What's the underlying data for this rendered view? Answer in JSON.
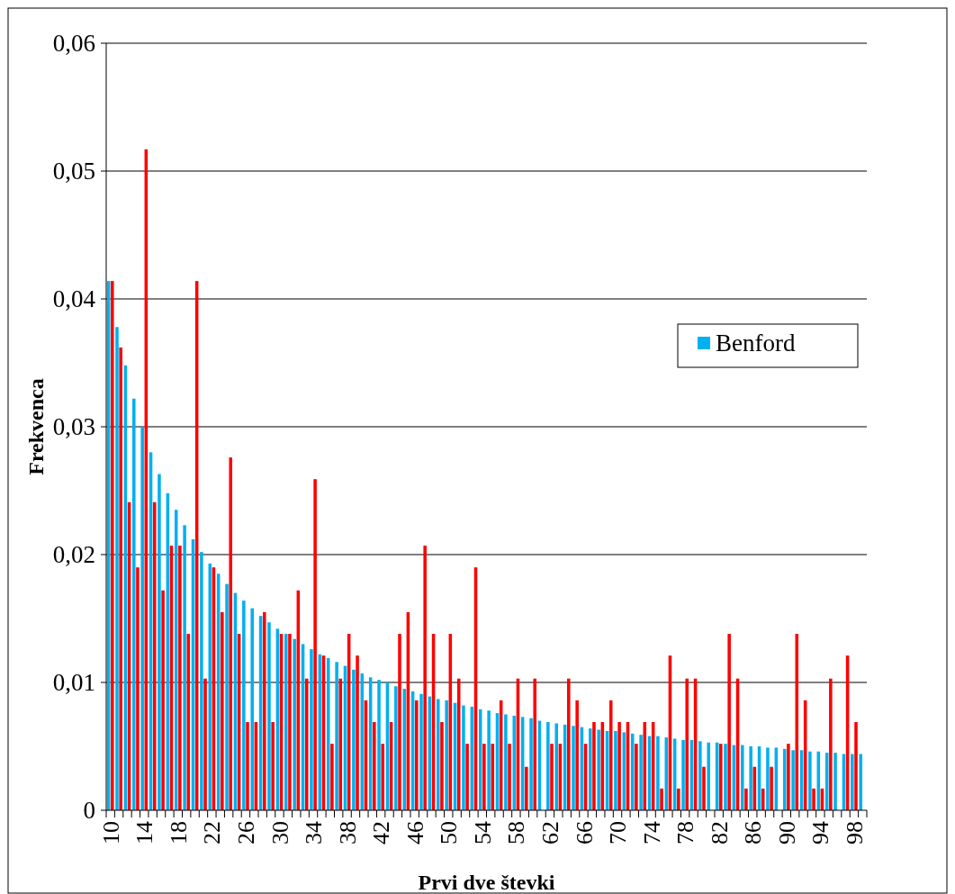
{
  "chart_data": {
    "type": "bar",
    "xlabel": "Prvi dve števki",
    "ylabel": "Frekvenca",
    "categories": [
      "10",
      null,
      null,
      null,
      "14",
      null,
      null,
      null,
      "18",
      null,
      null,
      null,
      "22",
      null,
      null,
      null,
      "26",
      null,
      null,
      null,
      "30",
      null,
      null,
      null,
      "34",
      null,
      null,
      null,
      "38",
      null,
      null,
      null,
      "42",
      null,
      null,
      null,
      "46",
      null,
      null,
      null,
      "50",
      null,
      null,
      null,
      "54",
      null,
      null,
      null,
      "58",
      null,
      null,
      null,
      "62",
      null,
      null,
      null,
      "66",
      null,
      null,
      null,
      "70",
      null,
      null,
      null,
      "74",
      null,
      null,
      null,
      "78",
      null,
      null,
      null,
      "82",
      null,
      null,
      null,
      "86",
      null,
      null,
      null,
      "90",
      null,
      null,
      null,
      "94",
      null,
      null,
      null,
      "98",
      null
    ],
    "series": [
      {
        "name": "Benford",
        "color": "#00b0f0",
        "values": [
          0.0414,
          0.0378,
          0.0348,
          0.0322,
          0.03,
          0.028,
          0.0263,
          0.0248,
          0.0235,
          0.0223,
          0.0212,
          0.0202,
          0.0193,
          0.0185,
          0.0177,
          0.017,
          0.0164,
          0.0158,
          0.0152,
          0.0147,
          0.0142,
          0.0138,
          0.0134,
          0.013,
          0.0126,
          0.0122,
          0.0119,
          0.0116,
          0.0113,
          0.011,
          0.0107,
          0.0104,
          0.0102,
          0.01,
          0.0097,
          0.0095,
          0.0093,
          0.0091,
          0.0089,
          0.0087,
          0.0086,
          0.0084,
          0.0082,
          0.0081,
          0.0079,
          0.0078,
          0.0076,
          0.0075,
          0.0074,
          0.0073,
          0.0072,
          0.007,
          0.0069,
          0.0068,
          0.0067,
          0.0066,
          0.0065,
          0.0064,
          0.0063,
          0.0062,
          0.0062,
          0.0061,
          0.006,
          0.0059,
          0.0058,
          0.0058,
          0.0057,
          0.0056,
          0.0055,
          0.0055,
          0.0054,
          0.0053,
          0.0053,
          0.0052,
          0.0051,
          0.0051,
          0.005,
          0.005,
          0.0049,
          0.0049,
          0.0048,
          0.0047,
          0.0047,
          0.0046,
          0.0046,
          0.0045,
          0.0045,
          0.0044,
          0.0044,
          0.0044
        ]
      },
      {
        "color": "#ff0000",
        "values": [
          0.0414,
          0.0362,
          0.0241,
          0.019,
          0.0517,
          0.0241,
          0.0172,
          0.0207,
          0.0207,
          0.0138,
          0.0414,
          0.0103,
          0.019,
          0.0155,
          0.0276,
          0.0138,
          0.0069,
          0.0069,
          0.0155,
          0.0069,
          0.0138,
          0.0138,
          0.0172,
          0.0103,
          0.0259,
          0.0121,
          0.0052,
          0.0103,
          0.0138,
          0.0121,
          0.0086,
          0.0069,
          0.0052,
          0.0069,
          0.0138,
          0.0155,
          0.0086,
          0.0207,
          0.0138,
          0.0069,
          0.0138,
          0.0103,
          0.0052,
          0.019,
          0.0052,
          0.0052,
          0.0086,
          0.0052,
          0.0103,
          0.0034,
          0.0103,
          0,
          0.0052,
          0.0052,
          0.0103,
          0.0086,
          0.0052,
          0.0069,
          0.0069,
          0.0086,
          0.0069,
          0.0069,
          0.0052,
          0.0069,
          0.0069,
          0.0017,
          0.0121,
          0.0017,
          0.0103,
          0.0103,
          0.0034,
          0,
          0.0052,
          0.0138,
          0.0103,
          0.0017,
          0.0034,
          0.0017,
          0.0034,
          0,
          0.0052,
          0.0138,
          0.0086,
          0.0017,
          0.0017,
          0.0103,
          0,
          0.0121,
          0.0069,
          0
        ]
      }
    ],
    "ylim": [
      0,
      0.06
    ],
    "yticks": [
      {
        "value": 0,
        "label": "0"
      },
      {
        "value": 0.01,
        "label": "0,01"
      },
      {
        "value": 0.02,
        "label": "0,02"
      },
      {
        "value": 0.03,
        "label": "0,03"
      },
      {
        "value": 0.04,
        "label": "0,04"
      },
      {
        "value": 0.05,
        "label": "0,05"
      },
      {
        "value": 0.06,
        "label": "0,06"
      }
    ],
    "grid": "y",
    "legend": "right"
  }
}
